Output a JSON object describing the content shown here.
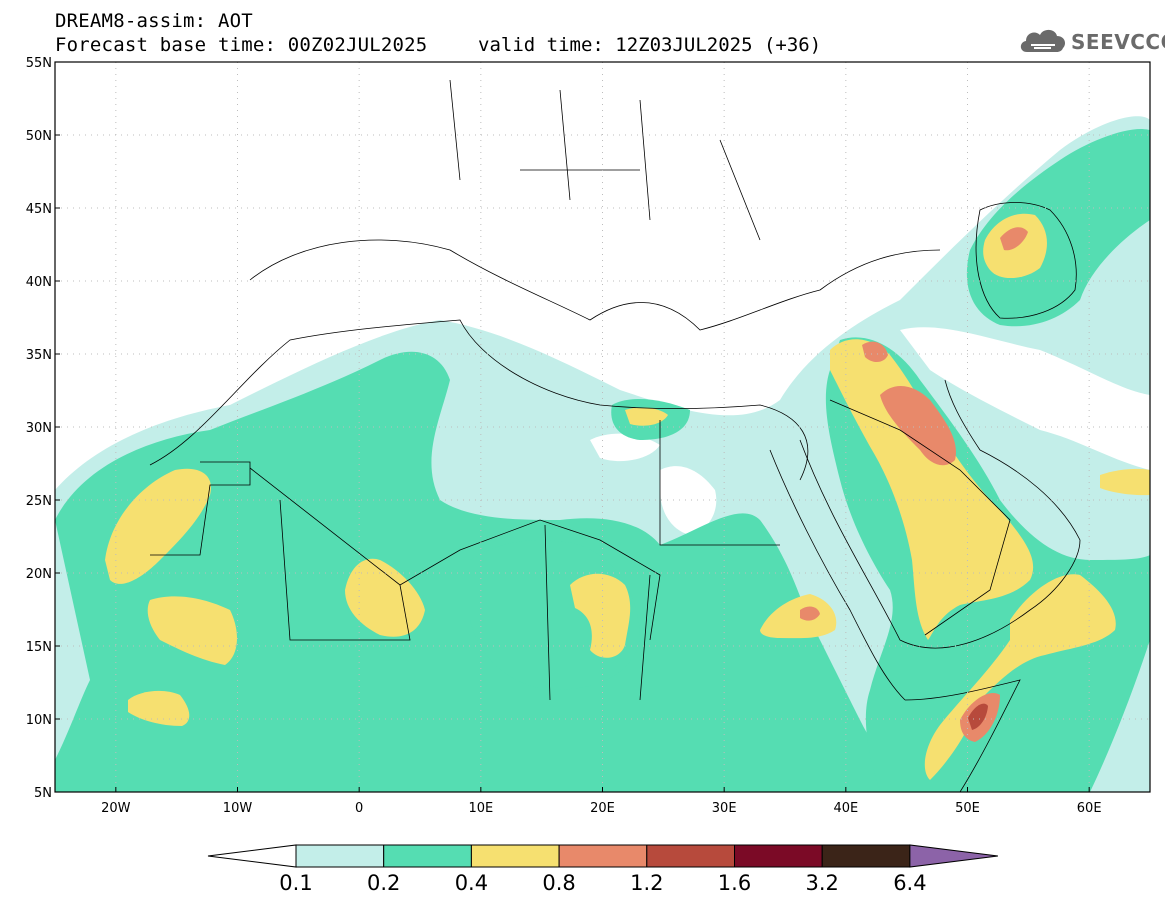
{
  "header": {
    "model_line": "DREAM8-assim: AOT",
    "base_time": "Forecast base time: 00Z02JUL2025",
    "valid_time": "valid time: 12Z03JUL2025 (+36)"
  },
  "logo": {
    "text": "SEEVCCC",
    "icon": "cloud-icon"
  },
  "map": {
    "lat_labels": [
      "55N",
      "50N",
      "45N",
      "40N",
      "35N",
      "30N",
      "25N",
      "20N",
      "15N",
      "10N",
      "5N"
    ],
    "lon_labels": [
      "20W",
      "10W",
      "0",
      "10E",
      "20E",
      "30E",
      "40E",
      "50E",
      "60E"
    ]
  },
  "colorbar": {
    "labels": [
      "0.1",
      "0.2",
      "0.4",
      "0.8",
      "1.2",
      "1.6",
      "3.2",
      "6.4"
    ],
    "colors": [
      "#ffffff",
      "#c3eee9",
      "#55ddb2",
      "#f6e070",
      "#e8896a",
      "#b74a3c",
      "#7b0a26",
      "#3b2418",
      "#8c63a8"
    ]
  },
  "palette": {
    "c01": "#c3eee9",
    "c02": "#55ddb2",
    "c04": "#f6e070",
    "c08": "#e8896a",
    "c12": "#b74a3c"
  }
}
